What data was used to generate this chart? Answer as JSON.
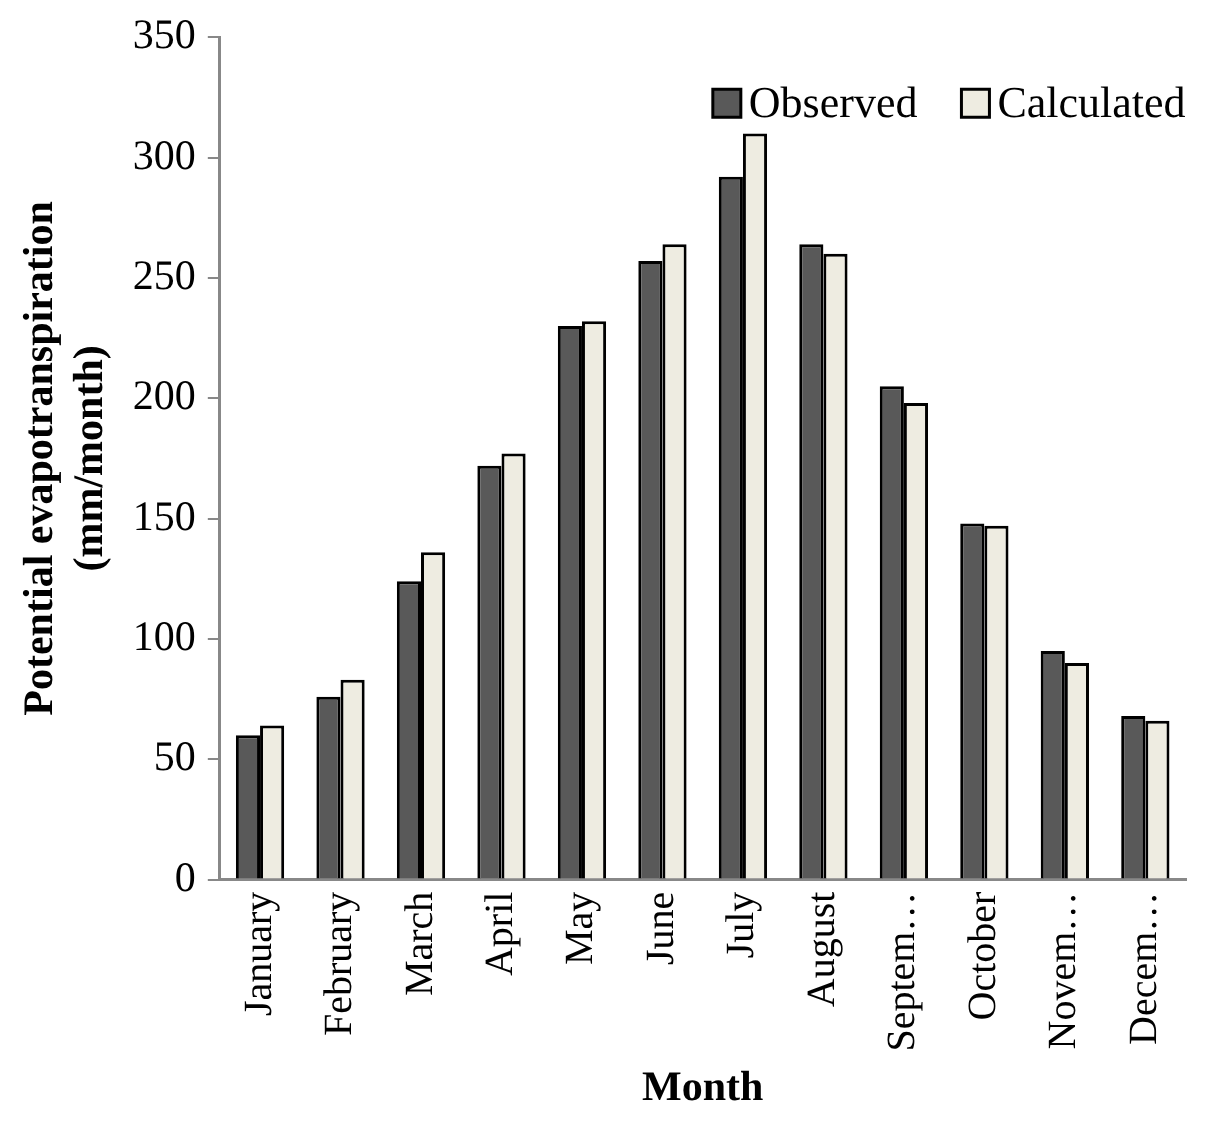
{
  "chart_data": {
    "type": "bar",
    "xlabel": "Month",
    "ylabel": "Potential evapotranspiration (mm/month)",
    "categories": [
      "January",
      "February",
      "March",
      "April",
      "May",
      "June",
      "July",
      "August",
      "Septem…",
      "October",
      "Novem…",
      "Decem…"
    ],
    "series": [
      {
        "name": "Observed",
        "color": "#595959",
        "values": [
          60,
          76,
          124,
          172,
          230,
          257,
          292,
          264,
          205,
          148,
          95,
          68
        ]
      },
      {
        "name": "Calculated",
        "color": "#eeece1",
        "values": [
          64,
          83,
          136,
          177,
          232,
          264,
          310,
          260,
          198,
          147,
          90,
          66
        ]
      }
    ],
    "ylim": [
      0,
      350
    ],
    "yticks": [
      0,
      50,
      100,
      150,
      200,
      250,
      300,
      350
    ],
    "grid": false,
    "legend": "top right"
  }
}
